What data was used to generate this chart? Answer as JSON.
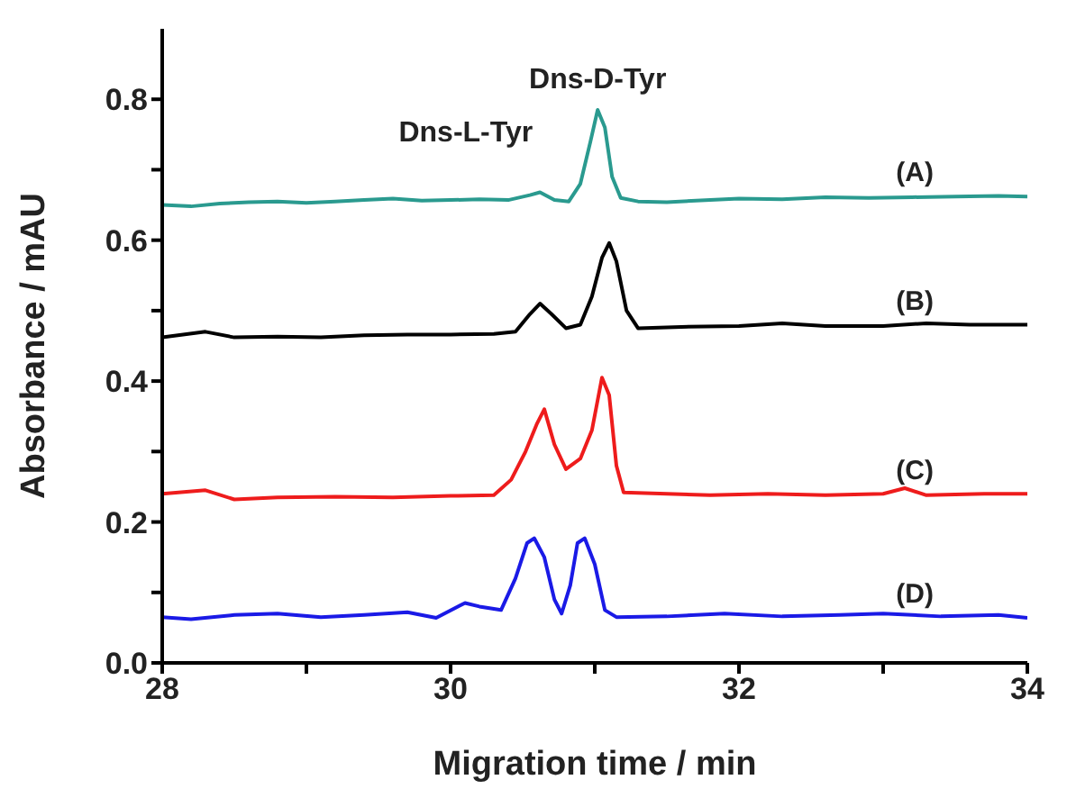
{
  "chart_data": {
    "type": "line",
    "xlabel": "Migration time / min",
    "ylabel": "Absorbance / mAU",
    "xlim": [
      28,
      34
    ],
    "xticks": [
      28,
      {
        "value": 29,
        "label": null
      },
      30,
      {
        "value": 31,
        "label": null
      },
      32,
      {
        "value": 33,
        "label": null
      },
      34
    ],
    "ylim": [
      0,
      0.9
    ],
    "yticks": [
      {
        "value": 0,
        "label": "0.0"
      },
      {
        "value": 0.1,
        "label": null
      },
      {
        "value": 0.2,
        "label": "0.2"
      },
      {
        "value": 0.3,
        "label": null
      },
      {
        "value": 0.4,
        "label": "0.4"
      },
      {
        "value": 0.5,
        "label": null
      },
      {
        "value": 0.6,
        "label": "0.6"
      },
      {
        "value": 0.7,
        "label": null
      },
      {
        "value": 0.8,
        "label": "0.8"
      }
    ],
    "grid": false,
    "legend": false,
    "marker": "none",
    "line_style": "solid",
    "annotations": [
      {
        "text": "Dns-L-Tyr",
        "x": 30.62,
        "y": 0.668
      },
      {
        "text": "Dns-D-Tyr",
        "x": 31.02,
        "y": 0.785
      }
    ],
    "series": [
      {
        "name": "(A)",
        "color": "#2a9a8f",
        "x": [
          28,
          28.2,
          28.4,
          28.6,
          28.8,
          29,
          29.2,
          29.4,
          29.6,
          29.8,
          30,
          30.2,
          30.4,
          30.55,
          30.62,
          30.72,
          30.82,
          30.9,
          30.97,
          31.02,
          31.07,
          31.12,
          31.18,
          31.3,
          31.5,
          31.8,
          32,
          32.3,
          32.6,
          32.9,
          33.2,
          33.5,
          33.8,
          34
        ],
        "values": [
          0.65,
          0.648,
          0.652,
          0.654,
          0.655,
          0.653,
          0.655,
          0.657,
          0.659,
          0.656,
          0.657,
          0.658,
          0.657,
          0.664,
          0.668,
          0.657,
          0.655,
          0.68,
          0.74,
          0.785,
          0.76,
          0.69,
          0.66,
          0.655,
          0.654,
          0.657,
          0.659,
          0.658,
          0.661,
          0.66,
          0.661,
          0.662,
          0.663,
          0.662
        ]
      },
      {
        "name": "(B)",
        "color": "#000000",
        "x": [
          28,
          28.3,
          28.5,
          28.8,
          29.1,
          29.4,
          29.7,
          30,
          30.3,
          30.45,
          30.55,
          30.62,
          30.7,
          30.8,
          30.9,
          30.98,
          31.05,
          31.1,
          31.15,
          31.22,
          31.3,
          31.6,
          32,
          32.3,
          32.6,
          33,
          33.3,
          33.6,
          34
        ],
        "values": [
          0.462,
          0.47,
          0.462,
          0.463,
          0.462,
          0.465,
          0.466,
          0.466,
          0.467,
          0.47,
          0.495,
          0.51,
          0.495,
          0.475,
          0.48,
          0.52,
          0.575,
          0.596,
          0.57,
          0.5,
          0.475,
          0.477,
          0.478,
          0.482,
          0.478,
          0.478,
          0.482,
          0.48,
          0.48
        ]
      },
      {
        "name": "(C)",
        "color": "#ee1c1c",
        "x": [
          28,
          28.3,
          28.5,
          28.8,
          29.2,
          29.6,
          30,
          30.3,
          30.42,
          30.52,
          30.6,
          30.65,
          30.72,
          30.8,
          30.9,
          30.98,
          31.05,
          31.1,
          31.15,
          31.2,
          31.5,
          31.8,
          32.2,
          32.6,
          33,
          33.15,
          33.3,
          33.7,
          34
        ],
        "values": [
          0.24,
          0.245,
          0.232,
          0.235,
          0.236,
          0.235,
          0.237,
          0.238,
          0.26,
          0.3,
          0.34,
          0.36,
          0.31,
          0.275,
          0.29,
          0.33,
          0.405,
          0.38,
          0.28,
          0.242,
          0.24,
          0.238,
          0.24,
          0.238,
          0.24,
          0.248,
          0.238,
          0.24,
          0.24
        ]
      },
      {
        "name": "(D)",
        "color": "#1a1ae6",
        "x": [
          28,
          28.2,
          28.5,
          28.8,
          29.1,
          29.4,
          29.7,
          29.9,
          30.1,
          30.2,
          30.35,
          30.45,
          30.53,
          30.58,
          30.65,
          30.72,
          30.77,
          30.83,
          30.88,
          30.93,
          31,
          31.07,
          31.15,
          31.5,
          31.9,
          32.3,
          32.7,
          33,
          33.4,
          33.8,
          34
        ],
        "values": [
          0.065,
          0.062,
          0.068,
          0.07,
          0.065,
          0.068,
          0.072,
          0.064,
          0.085,
          0.08,
          0.075,
          0.12,
          0.17,
          0.177,
          0.15,
          0.09,
          0.07,
          0.11,
          0.17,
          0.177,
          0.14,
          0.075,
          0.065,
          0.066,
          0.07,
          0.066,
          0.068,
          0.07,
          0.066,
          0.068,
          0.064
        ]
      }
    ]
  }
}
